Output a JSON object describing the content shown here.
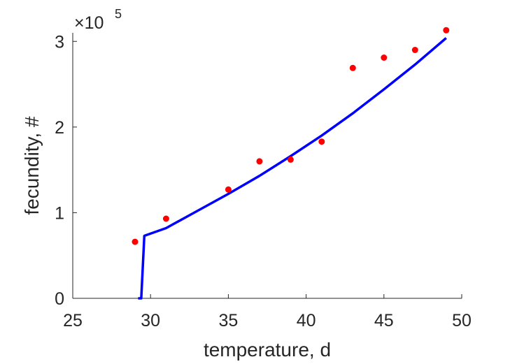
{
  "chart_data": {
    "type": "line",
    "title": "",
    "xlabel": "temperature, d",
    "ylabel": "fecundity, #",
    "xlim": [
      25,
      50
    ],
    "ylim": [
      0,
      310000
    ],
    "xticks": [
      25,
      30,
      35,
      40,
      45,
      50
    ],
    "xtick_labels": [
      "25",
      "30",
      "35",
      "40",
      "45",
      "50"
    ],
    "yticks": [
      0,
      100000,
      200000,
      300000
    ],
    "ytick_labels": [
      "0",
      "1",
      "2",
      "3"
    ],
    "y_exponent": {
      "prefix": "×10",
      "power": "5"
    },
    "grid": false,
    "legend": "none",
    "series": [
      {
        "kind": "scatter",
        "color": "#ff0000",
        "x": [
          29,
          31,
          35,
          37,
          39,
          41,
          43,
          45,
          47,
          49
        ],
        "y": [
          66000,
          93000,
          127000,
          160000,
          162000,
          183000,
          269000,
          281000,
          290000,
          313000
        ]
      },
      {
        "kind": "line",
        "color": "#0000ff",
        "x": [
          29.2,
          29.4,
          29.6,
          31,
          33,
          35,
          37,
          39,
          41,
          43,
          45,
          47,
          49
        ],
        "y": [
          0,
          0,
          73000,
          82000,
          102000,
          122000,
          143000,
          166000,
          190000,
          216000,
          244000,
          273000,
          304000
        ]
      }
    ]
  }
}
